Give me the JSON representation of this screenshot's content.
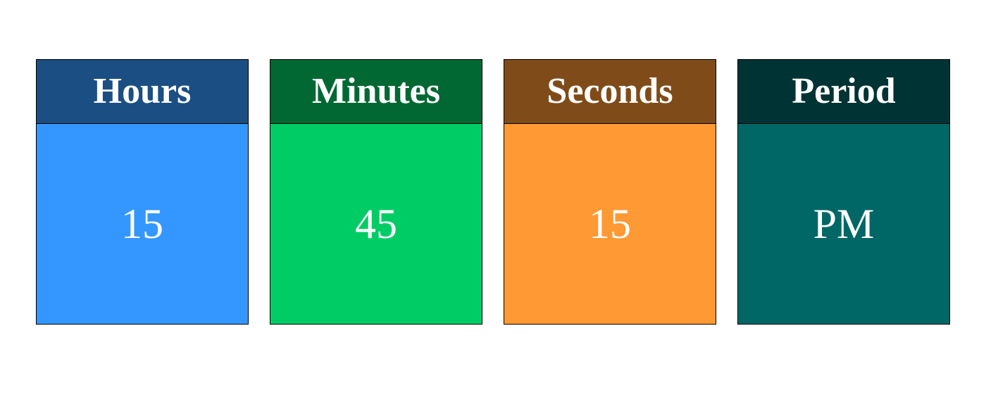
{
  "units": [
    {
      "label": "Hours",
      "value": "15",
      "header_color": "#1b4f83",
      "body_color": "#3397ff"
    },
    {
      "label": "Minutes",
      "value": "45",
      "header_color": "#016833",
      "body_color": "#00cc66"
    },
    {
      "label": "Seconds",
      "value": "15",
      "header_color": "#7f4c19",
      "body_color": "#ff9933"
    },
    {
      "label": "Period",
      "value": "PM",
      "header_color": "#003333",
      "body_color": "#006666"
    }
  ]
}
